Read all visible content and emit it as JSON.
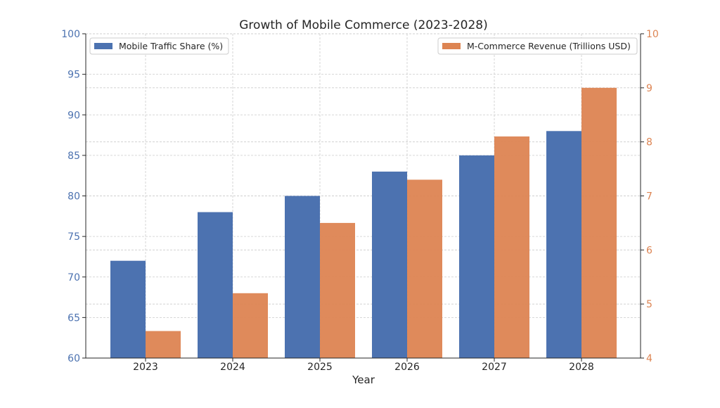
{
  "chart_data": {
    "type": "bar",
    "title": "Growth of Mobile Commerce (2023-2028)",
    "xlabel": "Year",
    "ylabel": "",
    "ylabel_right": "",
    "categories": [
      "2023",
      "2024",
      "2025",
      "2026",
      "2027",
      "2028"
    ],
    "series": [
      {
        "name": "Mobile Traffic Share (%)",
        "axis": "left",
        "color": "#4c72b0",
        "values": [
          72,
          78,
          80,
          83,
          85,
          88
        ]
      },
      {
        "name": "M-Commerce Revenue (Trillions USD)",
        "axis": "right",
        "color": "#dd8452",
        "values": [
          4.5,
          5.2,
          6.5,
          7.3,
          8.1,
          9.0
        ]
      }
    ],
    "ylim": [
      60,
      100
    ],
    "yticks": [
      60,
      65,
      70,
      75,
      80,
      85,
      90,
      95,
      100
    ],
    "ylim_right": [
      4,
      10
    ],
    "yticks_right": [
      4,
      5,
      6,
      7,
      8,
      9,
      10
    ],
    "grid": true,
    "legend_left": "top-left",
    "legend_right": "top-right"
  }
}
